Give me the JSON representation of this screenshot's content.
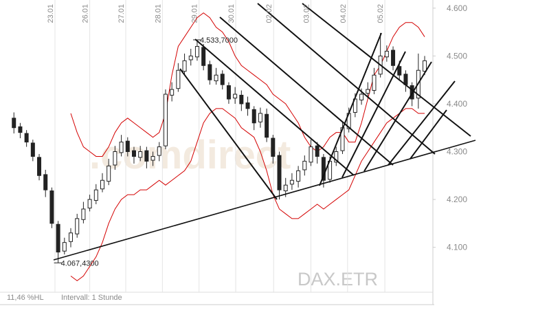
{
  "chart_data": {
    "type": "candlestick",
    "open": [
      4370,
      4352,
      4338,
      4318,
      4288,
      4252,
      4218,
      4148,
      4092,
      4112,
      4128,
      4158,
      4182,
      4198,
      4222,
      4238,
      4272,
      4298,
      4322,
      4302,
      4288,
      4302,
      4282,
      4292,
      4312,
      4418,
      4432,
      4468,
      4492,
      4498,
      4518,
      4482,
      4448,
      4462,
      4438,
      4412,
      4418,
      4402,
      4388,
      4362,
      4378,
      4328,
      4292,
      4218,
      4232,
      4238,
      4262,
      4278,
      4312,
      4288,
      4242,
      4278,
      4302,
      4348,
      4382,
      4408,
      4422,
      4428,
      4462,
      4498,
      4512,
      4478,
      4462,
      4438,
      4412,
      4468
    ],
    "high": [
      4382,
      4360,
      4345,
      4325,
      4295,
      4262,
      4225,
      4155,
      4120,
      4140,
      4170,
      4195,
      4210,
      4232,
      4255,
      4285,
      4312,
      4335,
      4330,
      4310,
      4312,
      4310,
      4300,
      4320,
      4430,
      4445,
      4485,
      4505,
      4515,
      4533.7,
      4525,
      4490,
      4475,
      4470,
      4445,
      4435,
      4428,
      4415,
      4395,
      4392,
      4390,
      4335,
      4300,
      4245,
      4255,
      4270,
      4292,
      4325,
      4320,
      4295,
      4290,
      4310,
      4362,
      4392,
      4422,
      4432,
      4445,
      4475,
      4548,
      4522,
      4520,
      4490,
      4470,
      4445,
      4505,
      4500
    ],
    "low": [
      4338,
      4328,
      4310,
      4280,
      4240,
      4205,
      4140,
      4067.43,
      4085,
      4100,
      4120,
      4150,
      4175,
      4190,
      4215,
      4230,
      4262,
      4290,
      4290,
      4275,
      4280,
      4265,
      4270,
      4280,
      4305,
      4405,
      4425,
      4460,
      4480,
      4490,
      4470,
      4440,
      4440,
      4430,
      4400,
      4400,
      4385,
      4375,
      4345,
      4350,
      4320,
      4275,
      4200,
      4205,
      4220,
      4225,
      4250,
      4270,
      4275,
      4225,
      4235,
      4270,
      4295,
      4340,
      4372,
      4398,
      4412,
      4420,
      4455,
      4488,
      4470,
      4448,
      4425,
      4395,
      4390,
      4460
    ],
    "close": [
      4350,
      4340,
      4320,
      4290,
      4250,
      4220,
      4150,
      4090,
      4110,
      4130,
      4160,
      4180,
      4200,
      4220,
      4240,
      4270,
      4300,
      4320,
      4300,
      4290,
      4300,
      4280,
      4290,
      4310,
      4420,
      4430,
      4470,
      4490,
      4500,
      4520,
      4480,
      4450,
      4460,
      4440,
      4410,
      4420,
      4400,
      4390,
      4360,
      4380,
      4330,
      4290,
      4220,
      4230,
      4240,
      4260,
      4280,
      4310,
      4290,
      4240,
      4280,
      4300,
      4350,
      4380,
      4410,
      4420,
      4430,
      4460,
      4500,
      4510,
      4480,
      4460,
      4440,
      4410,
      4470,
      4490
    ],
    "upper_band": {
      "color": "#d40000",
      "values": [
        null,
        null,
        null,
        null,
        null,
        null,
        null,
        null,
        null,
        4380,
        4340,
        4310,
        4300,
        4290,
        4290,
        4310,
        4340,
        4360,
        4370,
        4360,
        4350,
        4340,
        4330,
        4340,
        4380,
        4460,
        4520,
        4540,
        4560,
        4580,
        4590,
        4580,
        4560,
        4550,
        4530,
        4500,
        4480,
        4470,
        4460,
        4450,
        4440,
        4420,
        4410,
        4400,
        4380,
        4360,
        4330,
        4310,
        4300,
        4310,
        4330,
        4340,
        4340,
        4320,
        4320,
        4360,
        4410,
        4460,
        4480,
        4510,
        4540,
        4560,
        4570,
        4570,
        4560,
        4540
      ]
    },
    "lower_band": {
      "color": "#d40000",
      "values": [
        null,
        null,
        null,
        null,
        null,
        null,
        null,
        null,
        null,
        4040,
        4030,
        4040,
        4060,
        4080,
        4110,
        4150,
        4180,
        4200,
        4210,
        4210,
        4220,
        4220,
        4230,
        4240,
        4230,
        4240,
        4250,
        4260,
        4280,
        4320,
        4360,
        4380,
        4390,
        4390,
        4380,
        4370,
        4350,
        4340,
        4330,
        4300,
        4260,
        4210,
        4180,
        4170,
        4160,
        4160,
        4170,
        4180,
        4190,
        4180,
        4190,
        4200,
        4210,
        4220,
        4250,
        4280,
        4300,
        4320,
        4340,
        4360,
        4370,
        4380,
        4390,
        4390,
        4380,
        4380
      ]
    },
    "xlim": [
      -2.2,
      66.3
    ],
    "xticks": [
      {
        "value": 6.5,
        "label": "23.01"
      },
      {
        "value": 12,
        "label": "26.01"
      },
      {
        "value": 17.7,
        "label": "27.01"
      },
      {
        "value": 23.5,
        "label": "28.01"
      },
      {
        "value": 29.3,
        "label": "29.01"
      },
      {
        "value": 35.1,
        "label": "30.01"
      },
      {
        "value": 41.1,
        "label": "02.02"
      },
      {
        "value": 47,
        "label": "03.02"
      },
      {
        "value": 52.8,
        "label": "04.02"
      },
      {
        "value": 58.7,
        "label": "05.02"
      }
    ],
    "ylim": [
      4006,
      4617
    ],
    "yticks": [
      {
        "value": 4100,
        "label": "4.100"
      },
      {
        "value": 4200,
        "label": "4.200"
      },
      {
        "value": 4300,
        "label": "4.300"
      },
      {
        "value": 4400,
        "label": "4.400"
      },
      {
        "value": 4500,
        "label": "4.500"
      },
      {
        "value": 4600,
        "label": "4.600"
      }
    ],
    "annotations": [
      {
        "value": 4533.7,
        "label": "4.533,7000"
      },
      {
        "value": 4067.43,
        "label": "4.067,4300"
      }
    ],
    "watermark": ".comdirect",
    "symbol": "DAX.ETR",
    "footer_left": "11,46 %HL",
    "interval": "Intervall: 1 Stunde"
  }
}
